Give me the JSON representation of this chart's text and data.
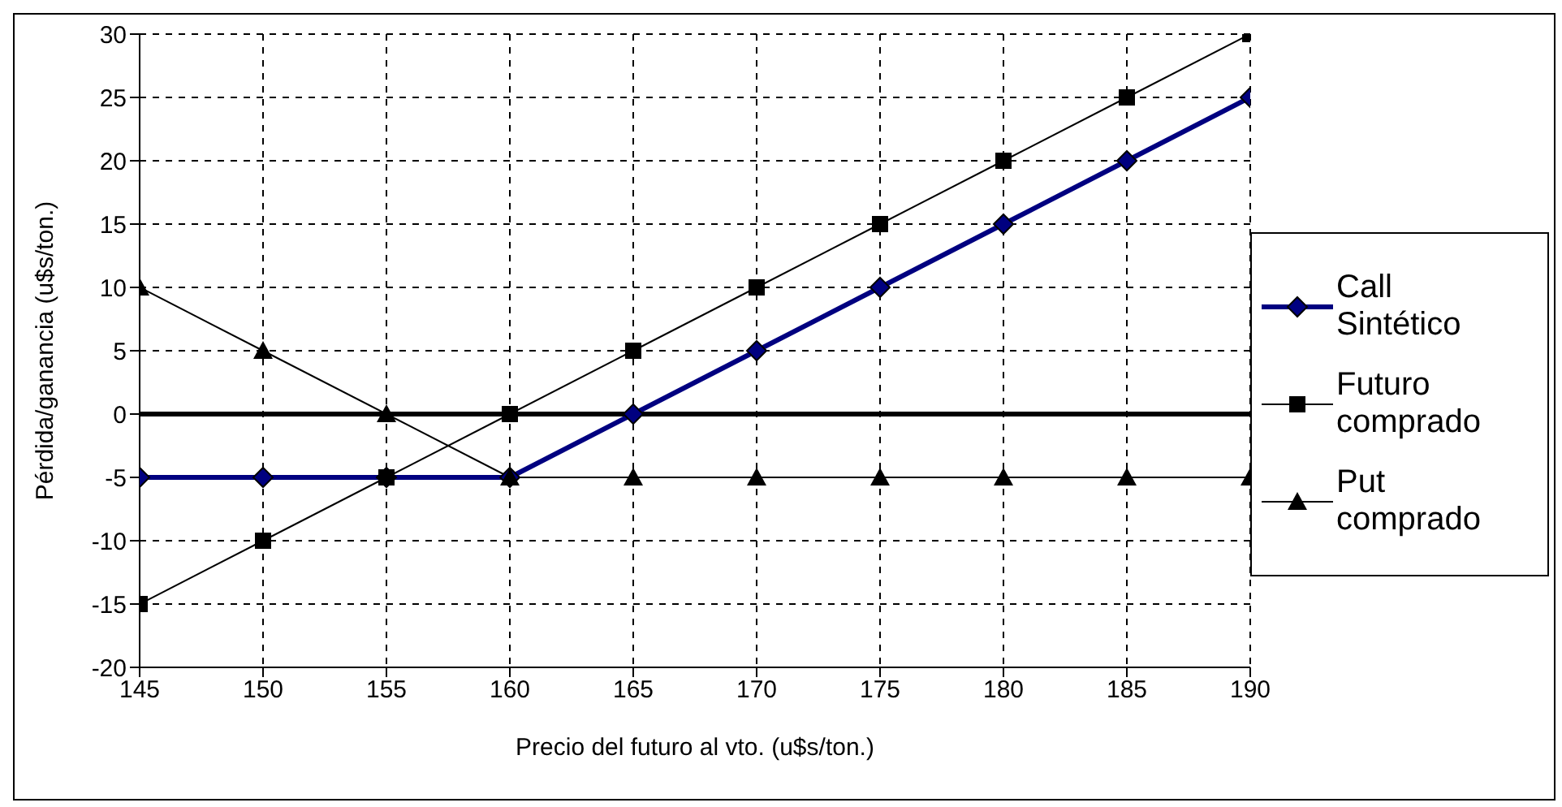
{
  "chart_data": {
    "type": "line",
    "xlabel": "Precio del futuro al vto. (u$s/ton.)",
    "ylabel": "Pérdida/ganancia (u$s/ton.)",
    "x": [
      145,
      150,
      155,
      160,
      165,
      170,
      175,
      180,
      185,
      190
    ],
    "xlim": [
      145,
      190
    ],
    "xticks": [
      145,
      150,
      155,
      160,
      165,
      170,
      175,
      180,
      185,
      190
    ],
    "ylim": [
      -20,
      30
    ],
    "yticks": [
      -20,
      -15,
      -10,
      -5,
      0,
      5,
      10,
      15,
      20,
      25,
      30
    ],
    "grid": true,
    "legend": "right",
    "line_style": "solid",
    "ref_lines": [
      {
        "axis": "y",
        "value": 0,
        "color": "#000000"
      }
    ],
    "series": [
      {
        "name": "Call Sintético",
        "color": "#000080",
        "marker": "diamond",
        "values": [
          -5,
          -5,
          -5,
          -5,
          0,
          5,
          10,
          15,
          20,
          25
        ]
      },
      {
        "name": "Futuro comprado",
        "color": "#000000",
        "marker": "square",
        "values": [
          -15,
          -10,
          -5,
          0,
          5,
          10,
          15,
          20,
          25,
          30
        ]
      },
      {
        "name": "Put comprado",
        "color": "#000000",
        "marker": "triangle",
        "values": [
          10,
          5,
          0,
          -5,
          -5,
          -5,
          -5,
          -5,
          -5,
          -5
        ]
      }
    ]
  }
}
